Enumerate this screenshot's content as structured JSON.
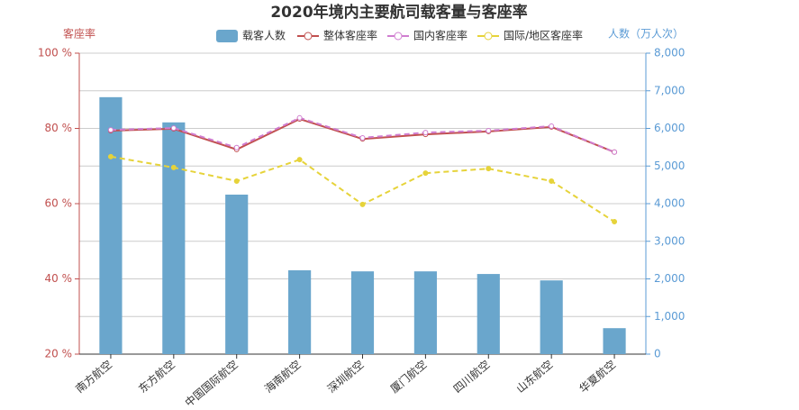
{
  "chart_data": {
    "type": "bar",
    "title": "2020年境内主要航司载客量与客座率",
    "ylabel": "客座率",
    "y2label": "人数（万人次）",
    "categories": [
      "南方航空",
      "东方航空",
      "中国国际航空",
      "海南航空",
      "深圳航空",
      "厦门航空",
      "四川航空",
      "山东航空",
      "华夏航空"
    ],
    "series": [
      {
        "name": "载客人数",
        "type": "bar",
        "axis": "y2",
        "color": "#6aa6cc",
        "values": [
          6830,
          6160,
          4240,
          2230,
          2200,
          2200,
          2130,
          1960,
          690
        ]
      },
      {
        "name": "整体客座率",
        "type": "line",
        "color": "#c1504f",
        "dashed": false,
        "values": [
          79.4,
          79.9,
          74.4,
          82.5,
          77.2,
          78.4,
          79.2,
          80.4,
          73.7
        ]
      },
      {
        "name": "国内客座率",
        "type": "line",
        "color": "#d07dd0",
        "dashed": true,
        "values": [
          79.6,
          80.1,
          74.9,
          82.8,
          77.5,
          78.9,
          79.4,
          80.6,
          73.7
        ]
      },
      {
        "name": "国际/地区客座率",
        "type": "line",
        "color": "#e6d33a",
        "dashed": true,
        "values": [
          72.5,
          69.6,
          66.0,
          71.7,
          59.8,
          68.1,
          69.3,
          66.0,
          55.2
        ]
      }
    ],
    "ylim": [
      20,
      100
    ],
    "yticks": [
      {
        "value": 20,
        "label": "20 %"
      },
      {
        "value": 40,
        "label": "40 %"
      },
      {
        "value": 60,
        "label": "60 %"
      },
      {
        "value": 80,
        "label": "80 %"
      },
      {
        "value": 100,
        "label": "100 %"
      }
    ],
    "y2lim": [
      0,
      8000
    ],
    "y2ticks": [
      0,
      {
        "value": 1000,
        "label": "1,000"
      },
      {
        "value": 2000,
        "label": "2,000"
      },
      {
        "value": 3000,
        "label": "3,000"
      },
      {
        "value": 4000,
        "label": "4,000"
      },
      {
        "value": 5000,
        "label": "5,000"
      },
      {
        "value": 6000,
        "label": "6,000"
      },
      {
        "value": 7000,
        "label": "7,000"
      },
      {
        "value": 8000,
        "label": "8,000"
      }
    ],
    "grid": true,
    "ycolor": "#c1504f",
    "y2color": "#5b9bd5"
  }
}
